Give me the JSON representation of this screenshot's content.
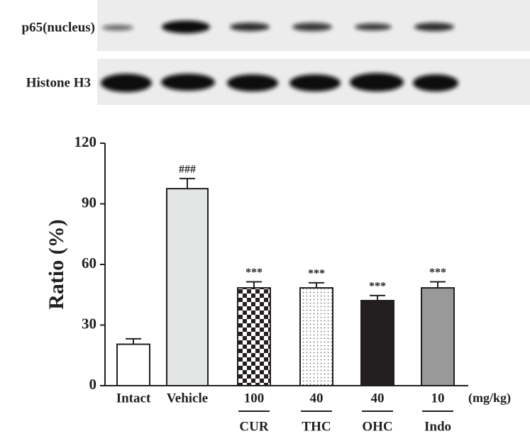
{
  "blots": {
    "rows": [
      "p65(nucleus)",
      "Histone H3"
    ]
  },
  "chart_data": {
    "type": "bar",
    "ylabel": "Ratio (%)",
    "categories": [
      "Intact",
      "Vehicle",
      "100",
      "40",
      "40",
      "10"
    ],
    "group_labels": [
      null,
      null,
      "CUR",
      "THC",
      "OHC",
      "Indo"
    ],
    "x_unit": "(mg/kg)",
    "values": [
      20.5,
      97.5,
      48.4,
      48.4,
      42.1,
      48.4
    ],
    "errors": [
      2.7,
      5,
      3,
      2.5,
      2.5,
      3
    ],
    "annotations": [
      null,
      "###",
      "***",
      "***",
      "***",
      "***"
    ],
    "fills": [
      "#ffffff",
      "#e4e6e6",
      "checker",
      "dots",
      "#231f20",
      "#999999"
    ],
    "ylim": [
      0,
      120
    ],
    "yticks": [
      0,
      30,
      60,
      90,
      120
    ]
  }
}
